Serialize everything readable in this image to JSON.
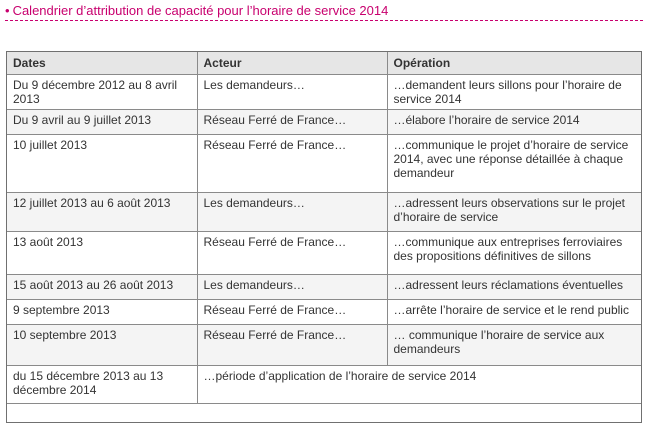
{
  "heading": {
    "bullet": "•",
    "title": "Calendrier d’attribution de capacité pour l’horaire de service 2014"
  },
  "table": {
    "headers": [
      "Dates",
      "Acteur",
      "Opération"
    ],
    "rows": [
      {
        "dates": "Du 9 décembre 2012 au 8 avril 2013",
        "acteur": "Les demandeurs…",
        "operation": "…demandent leurs sillons pour l’horaire de service 2014"
      },
      {
        "dates": "Du 9 avril au 9 juillet 2013",
        "acteur": "Réseau Ferré de France…",
        "operation": "…élabore l’horaire de service 2014"
      },
      {
        "dates": "10 juillet 2013",
        "acteur": "Réseau Ferré de France…",
        "operation": "…communique le projet d’horaire de service 2014, avec une réponse détaillée à chaque demandeur"
      },
      {
        "dates": "12 juillet 2013 au 6 août 2013",
        "acteur": "Les demandeurs…",
        "operation": "…adressent leurs observations sur le projet d’horaire de service"
      },
      {
        "dates": "13 août 2013",
        "acteur": "Réseau Ferré de France…",
        "operation": "…communique aux entreprises ferroviaires des propositions définitives de sillons"
      },
      {
        "dates": "15 août 2013 au 26 août 2013",
        "acteur": "Les demandeurs…",
        "operation": "…adressent leurs réclamations éventuelles"
      },
      {
        "dates": "9 septembre 2013",
        "acteur": "Réseau Ferré de France…",
        "operation": "…arrête l’horaire de service et le rend public"
      },
      {
        "dates": "10 septembre 2013",
        "acteur": "Réseau Ferré de France…",
        "operation": "… communique l’horaire de service aux demandeurs"
      }
    ],
    "last_row": {
      "dates": "du 15 décembre 2013 au 13 décembre 2014",
      "operation": "…période d’application de l’horaire de service 2014"
    }
  }
}
